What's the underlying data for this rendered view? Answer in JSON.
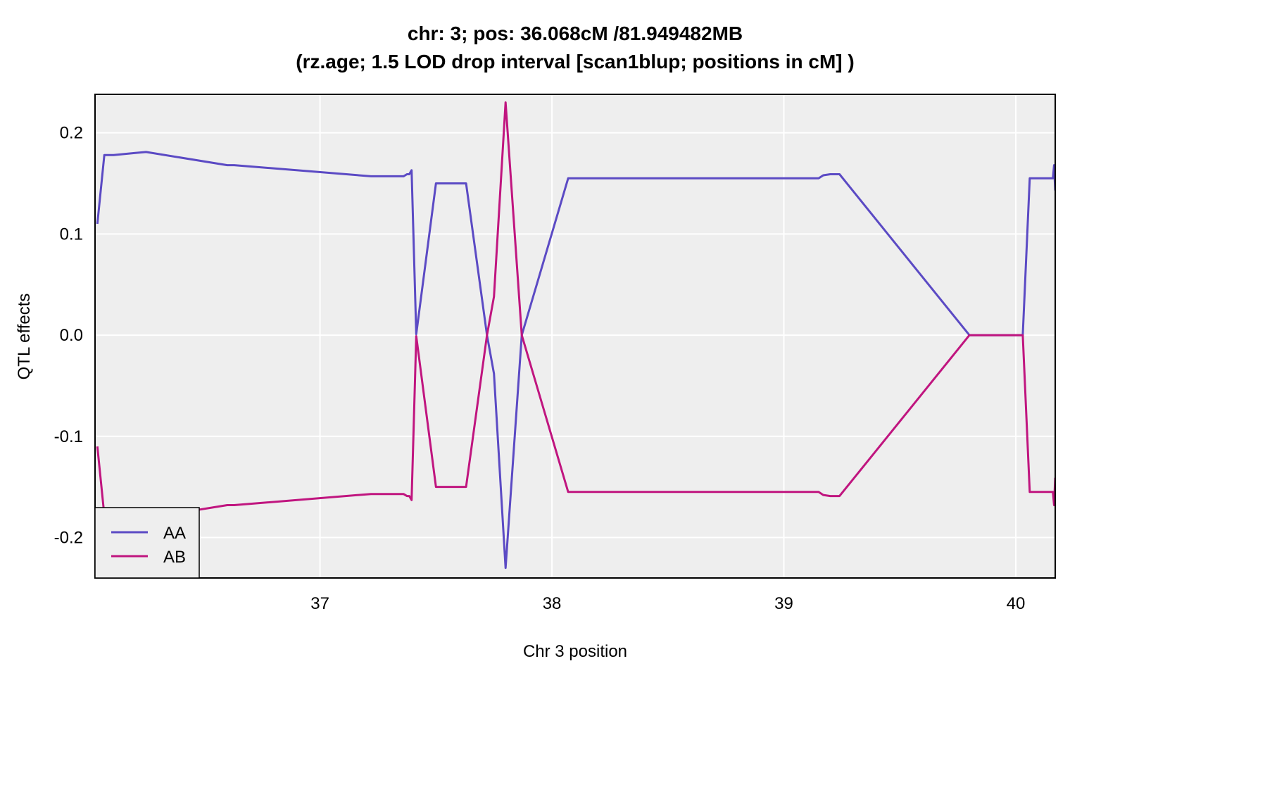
{
  "chart_data": {
    "type": "line",
    "title": "chr: 3; pos: 36.068cM /81.949482MB",
    "subtitle": "(rz.age; 1.5 LOD drop interval [scan1blup; positions in cM] )",
    "xlabel": "Chr 3 position",
    "ylabel": "QTL effects",
    "xlim": [
      36.03,
      40.17
    ],
    "ylim": [
      -0.24,
      0.238
    ],
    "xticks": [
      37,
      38,
      39,
      40
    ],
    "xtick_labels": [
      "37",
      "38",
      "39",
      "40"
    ],
    "yticks": [
      -0.2,
      -0.1,
      0.0,
      0.1,
      0.2
    ],
    "ytick_labels": [
      "-0.2",
      "-0.1",
      "0.0",
      "0.1",
      "0.2"
    ],
    "grid": true,
    "legend_position": "bottom-left",
    "series": [
      {
        "name": "AA",
        "color": "#5b4ac4",
        "x": [
          36.04,
          36.07,
          36.11,
          36.2,
          36.25,
          36.6,
          36.63,
          37.22,
          37.36,
          37.375,
          37.385,
          37.395,
          37.415,
          37.5,
          37.62,
          37.63,
          37.72,
          37.75,
          37.8,
          37.87,
          38.07,
          38.33,
          39.15,
          39.17,
          39.2,
          39.24,
          39.8,
          40.02,
          40.03,
          40.06,
          40.14,
          40.16,
          40.165,
          40.17
        ],
        "y": [
          0.11,
          0.178,
          0.178,
          0.18,
          0.181,
          0.168,
          0.168,
          0.157,
          0.157,
          0.159,
          0.159,
          0.163,
          0.001,
          0.15,
          0.15,
          0.15,
          0.0,
          -0.038,
          -0.23,
          0.0,
          0.155,
          0.155,
          0.155,
          0.158,
          0.159,
          0.159,
          0.0,
          0.0,
          0.0,
          0.155,
          0.155,
          0.155,
          0.168,
          0.143
        ]
      },
      {
        "name": "AB",
        "color": "#c0157f",
        "x": [
          36.04,
          36.07,
          36.11,
          36.2,
          36.25,
          36.6,
          36.63,
          37.22,
          37.36,
          37.375,
          37.385,
          37.395,
          37.415,
          37.5,
          37.62,
          37.63,
          37.72,
          37.75,
          37.8,
          37.87,
          38.07,
          38.33,
          39.15,
          39.17,
          39.2,
          39.24,
          39.8,
          40.02,
          40.03,
          40.06,
          40.14,
          40.16,
          40.165,
          40.17
        ],
        "y": [
          -0.11,
          -0.178,
          -0.178,
          -0.18,
          -0.181,
          -0.168,
          -0.168,
          -0.157,
          -0.157,
          -0.159,
          -0.159,
          -0.163,
          -0.001,
          -0.15,
          -0.15,
          -0.15,
          0.0,
          0.038,
          0.23,
          0.0,
          -0.155,
          -0.155,
          -0.155,
          -0.158,
          -0.159,
          -0.159,
          0.0,
          0.0,
          0.0,
          -0.155,
          -0.155,
          -0.155,
          -0.168,
          -0.141
        ]
      }
    ]
  }
}
